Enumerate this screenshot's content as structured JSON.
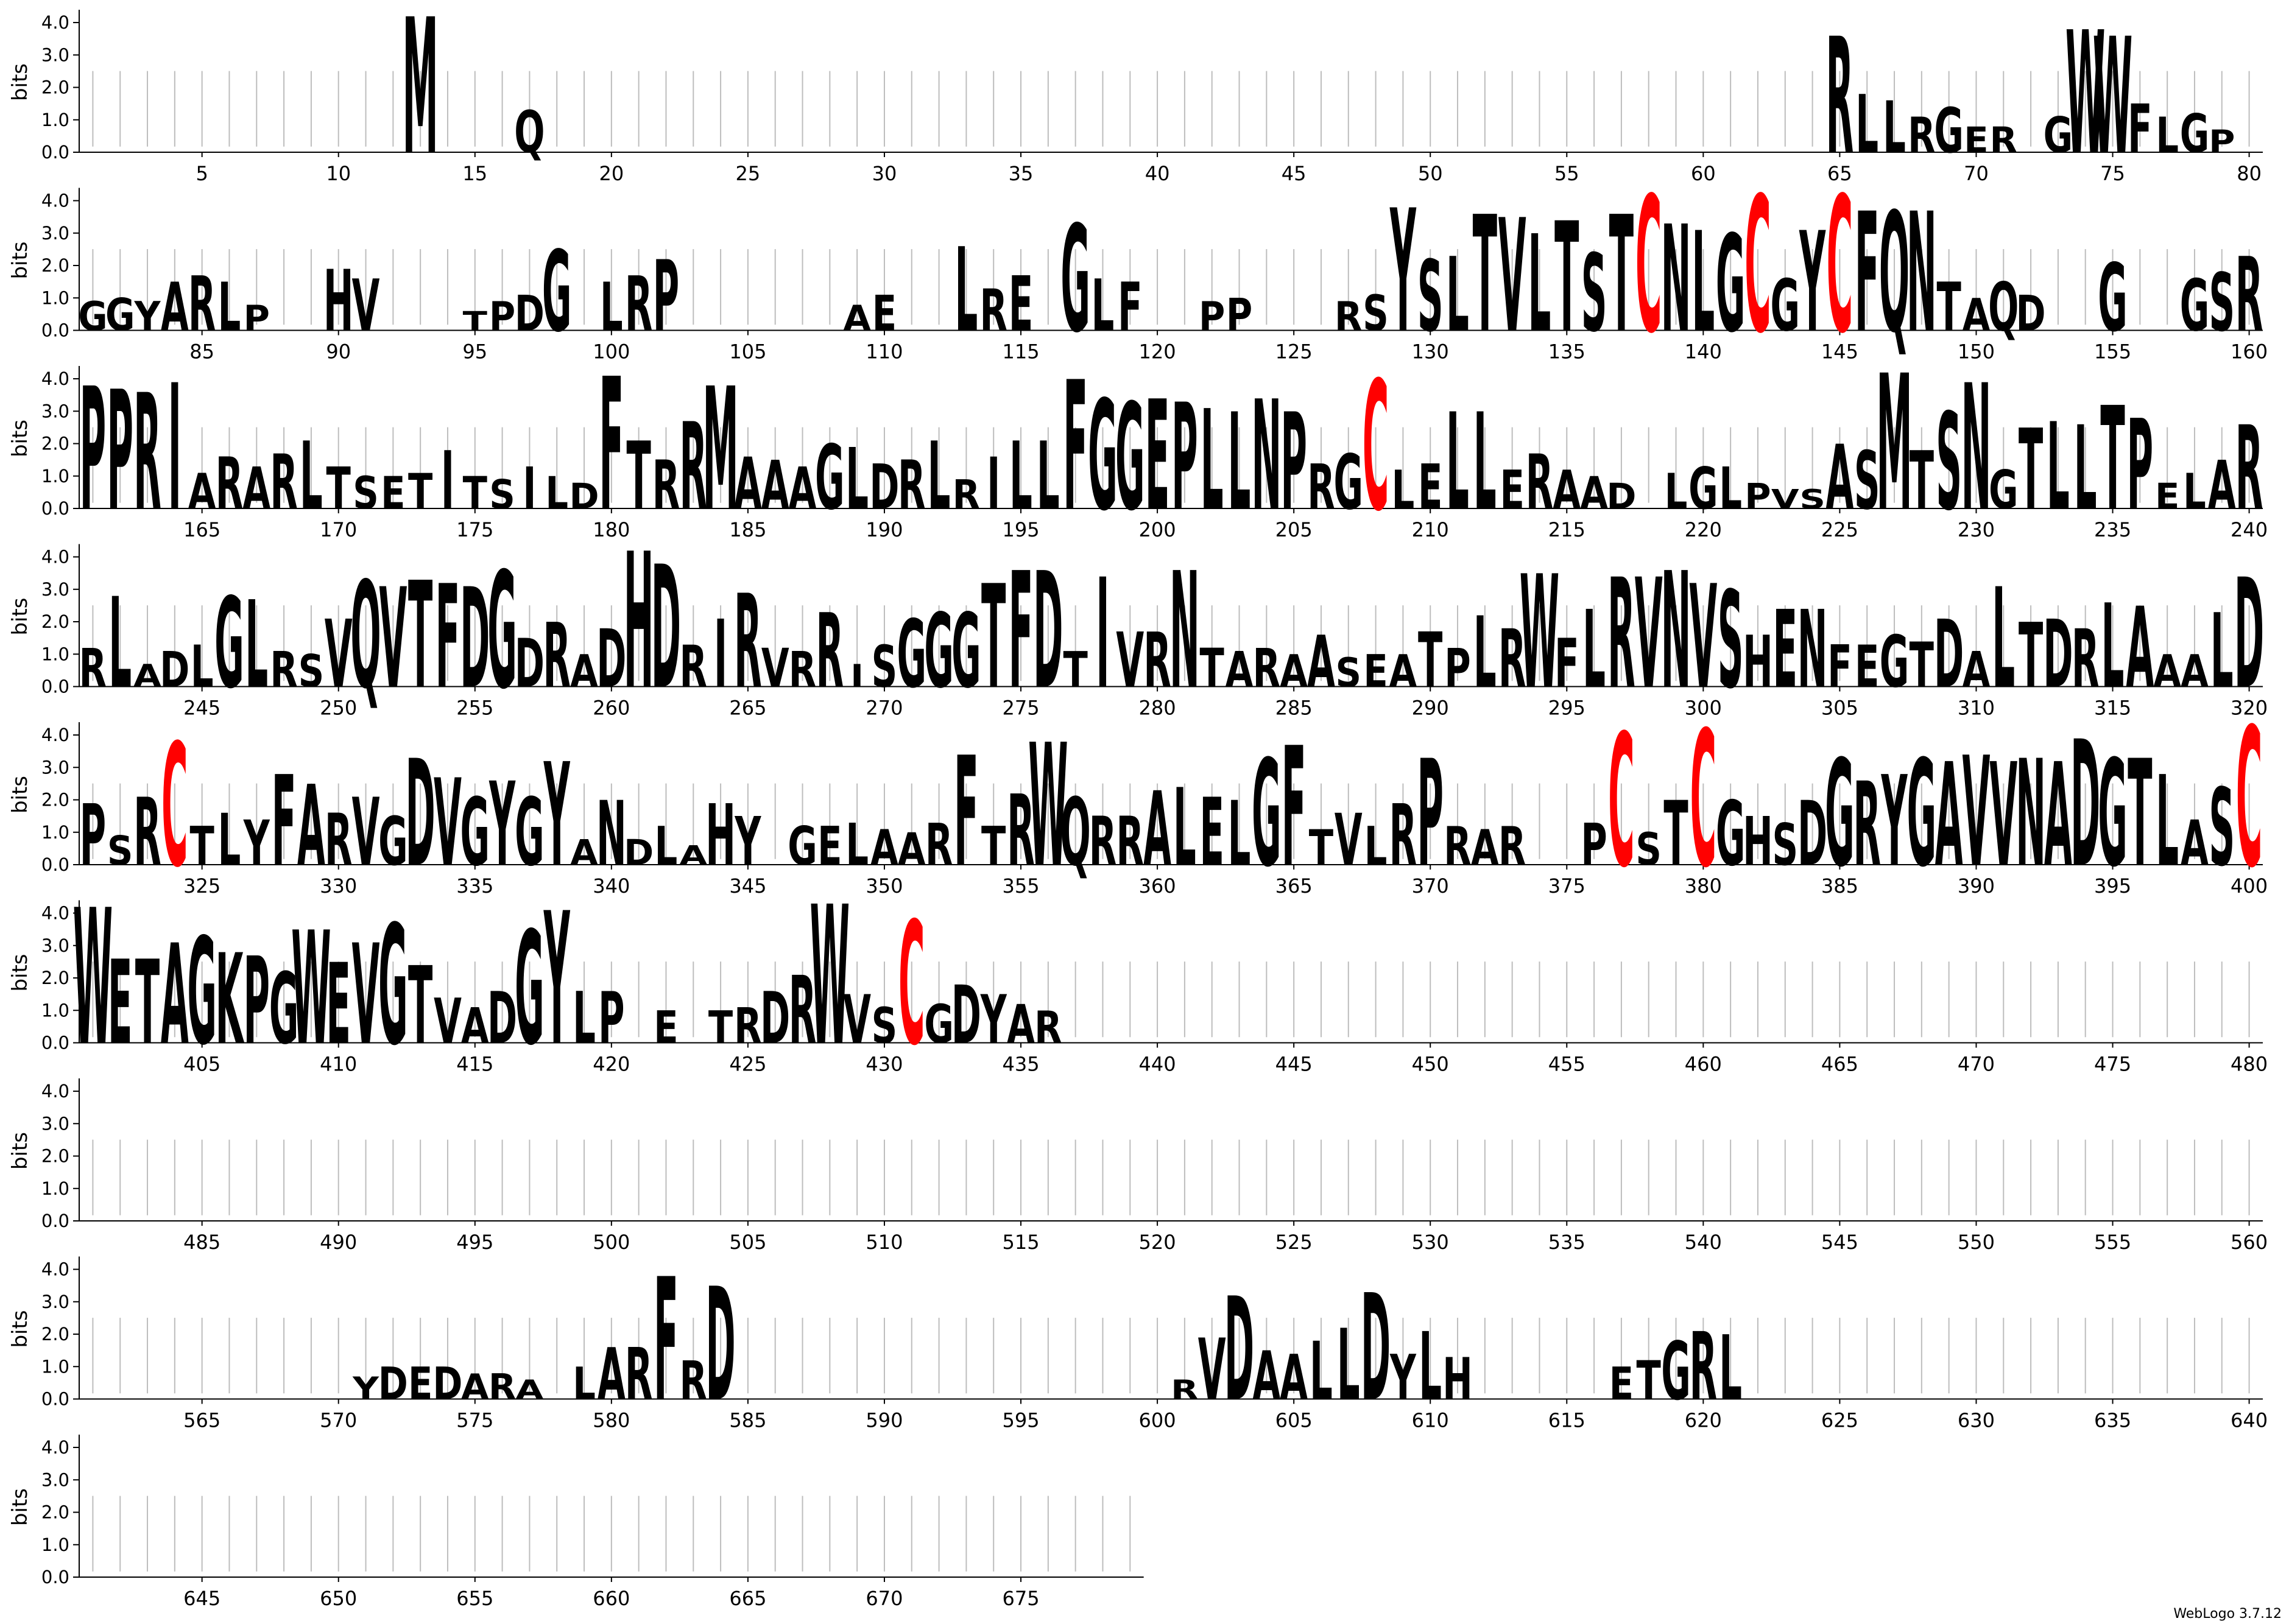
{
  "chart_data": {
    "type": "sequence-logo",
    "ylabel": "bits",
    "ylim": [
      0,
      4.32
    ],
    "yticks": [
      "0.0",
      "1.0",
      "2.0",
      "3.0",
      "4.0"
    ],
    "length": 679,
    "positions_per_row": 80,
    "xtick_step": 5,
    "highlight_color": "#ff0000",
    "default_color": "#000000",
    "residues": {
      "13": "M",
      "17": "Q",
      "65": "R",
      "66": "L",
      "67": "L",
      "68": "R",
      "69": "G",
      "70": "E",
      "71": "R",
      "73": "G",
      "74": "W",
      "75": "W",
      "76": "F",
      "77": "L",
      "78": "G",
      "79": "P",
      "81": "G",
      "82": "G",
      "83": "Y",
      "84": "A",
      "85": "R",
      "86": "L",
      "87": "P",
      "90": "H",
      "91": "V",
      "95": "T",
      "96": "P",
      "97": "D",
      "98": "G",
      "100": "L",
      "101": "R",
      "102": "P",
      "109": "A",
      "110": "E",
      "113": "L",
      "114": "R",
      "115": "E",
      "117": "G",
      "118": "L",
      "119": "F",
      "122": "P",
      "123": "P",
      "127": "R",
      "128": "S",
      "129": "Y",
      "130": "S",
      "131": "L",
      "132": "T",
      "133": "V",
      "134": "L",
      "135": "T",
      "136": "S",
      "137": "T",
      "138": "C",
      "139": "N",
      "140": "L",
      "141": "G",
      "142": "C",
      "143": "G",
      "144": "Y",
      "145": "C",
      "146": "F",
      "147": "Q",
      "148": "N",
      "149": "T",
      "150": "A",
      "151": "Q",
      "152": "D",
      "155": "G",
      "158": "G",
      "159": "S",
      "160": "R",
      "161": "P",
      "162": "P",
      "163": "R",
      "164": "I",
      "165": "A",
      "166": "R",
      "167": "A",
      "168": "R",
      "169": "L",
      "170": "T",
      "171": "S",
      "172": "E",
      "173": "T",
      "174": "I",
      "175": "T",
      "176": "S",
      "177": "I",
      "178": "L",
      "179": "D",
      "180": "F",
      "181": "T",
      "182": "R",
      "183": "R",
      "184": "M",
      "185": "A",
      "186": "A",
      "187": "A",
      "188": "G",
      "189": "L",
      "190": "D",
      "191": "R",
      "192": "L",
      "193": "R",
      "194": "I",
      "195": "L",
      "196": "L",
      "197": "F",
      "198": "G",
      "199": "G",
      "200": "E",
      "201": "P",
      "202": "L",
      "203": "L",
      "204": "N",
      "205": "P",
      "206": "R",
      "207": "G",
      "208": "C",
      "209": "L",
      "210": "E",
      "211": "L",
      "212": "L",
      "213": "E",
      "214": "R",
      "215": "A",
      "216": "A",
      "217": "D",
      "219": "L",
      "220": "G",
      "221": "L",
      "222": "P",
      "223": "V",
      "224": "S",
      "225": "A",
      "226": "S",
      "227": "M",
      "228": "T",
      "229": "S",
      "230": "N",
      "231": "G",
      "232": "T",
      "233": "L",
      "234": "L",
      "235": "T",
      "236": "P",
      "237": "E",
      "238": "L",
      "239": "A",
      "240": "R",
      "241": "R",
      "242": "L",
      "243": "A",
      "244": "D",
      "245": "L",
      "246": "G",
      "247": "L",
      "248": "R",
      "249": "S",
      "250": "V",
      "251": "Q",
      "252": "V",
      "253": "T",
      "254": "F",
      "255": "D",
      "256": "G",
      "257": "D",
      "258": "R",
      "259": "A",
      "260": "D",
      "261": "H",
      "262": "D",
      "263": "R",
      "264": "I",
      "265": "R",
      "266": "V",
      "267": "R",
      "268": "R",
      "269": "I",
      "270": "S",
      "271": "G",
      "272": "G",
      "273": "G",
      "274": "T",
      "275": "F",
      "276": "D",
      "277": "T",
      "278": "I",
      "279": "V",
      "280": "R",
      "281": "N",
      "282": "T",
      "283": "A",
      "284": "R",
      "285": "A",
      "286": "A",
      "287": "S",
      "288": "E",
      "289": "A",
      "290": "T",
      "291": "P",
      "292": "L",
      "293": "R",
      "294": "W",
      "295": "F",
      "296": "L",
      "297": "R",
      "298": "V",
      "299": "N",
      "300": "V",
      "301": "S",
      "302": "H",
      "303": "E",
      "304": "N",
      "305": "F",
      "306": "E",
      "307": "G",
      "308": "T",
      "309": "D",
      "310": "A",
      "311": "L",
      "312": "T",
      "313": "D",
      "314": "R",
      "315": "L",
      "316": "A",
      "317": "A",
      "318": "A",
      "319": "L",
      "320": "D",
      "321": "P",
      "322": "S",
      "323": "R",
      "324": "C",
      "325": "T",
      "326": "L",
      "327": "Y",
      "328": "F",
      "329": "A",
      "330": "R",
      "331": "V",
      "332": "G",
      "333": "D",
      "334": "V",
      "335": "G",
      "336": "Y",
      "337": "G",
      "338": "Y",
      "339": "A",
      "340": "N",
      "341": "D",
      "342": "L",
      "343": "A",
      "344": "H",
      "345": "Y",
      "347": "G",
      "348": "E",
      "349": "L",
      "350": "A",
      "351": "A",
      "352": "R",
      "353": "F",
      "354": "T",
      "355": "R",
      "356": "W",
      "357": "Q",
      "358": "R",
      "359": "R",
      "360": "A",
      "361": "L",
      "362": "E",
      "363": "L",
      "364": "G",
      "365": "F",
      "366": "T",
      "367": "V",
      "368": "L",
      "369": "R",
      "370": "P",
      "371": "R",
      "372": "A",
      "373": "R",
      "376": "P",
      "377": "C",
      "378": "S",
      "379": "T",
      "380": "C",
      "381": "G",
      "382": "H",
      "383": "S",
      "384": "D",
      "385": "G",
      "386": "R",
      "387": "Y",
      "388": "G",
      "389": "A",
      "390": "V",
      "391": "V",
      "392": "N",
      "393": "A",
      "394": "D",
      "395": "G",
      "396": "T",
      "397": "L",
      "398": "A",
      "399": "S",
      "400": "C",
      "401": "W",
      "402": "E",
      "403": "T",
      "404": "A",
      "405": "G",
      "406": "K",
      "407": "P",
      "408": "G",
      "409": "W",
      "410": "E",
      "411": "V",
      "412": "G",
      "413": "T",
      "414": "V",
      "415": "A",
      "416": "D",
      "417": "G",
      "418": "Y",
      "419": "L",
      "420": "P",
      "422": "E",
      "424": "T",
      "425": "R",
      "426": "D",
      "427": "R",
      "428": "W",
      "429": "V",
      "430": "S",
      "431": "C",
      "432": "G",
      "433": "D",
      "434": "Y",
      "435": "A",
      "436": "R",
      "571": "Y",
      "572": "D",
      "573": "E",
      "574": "D",
      "575": "A",
      "576": "R",
      "577": "A",
      "579": "L",
      "580": "A",
      "581": "R",
      "582": "F",
      "583": "R",
      "584": "D",
      "601": "R",
      "602": "V",
      "603": "D",
      "604": "A",
      "605": "A",
      "606": "L",
      "607": "L",
      "608": "D",
      "609": "Y",
      "610": "L",
      "611": "H",
      "617": "E",
      "618": "T",
      "619": "G",
      "620": "R",
      "621": "L"
    },
    "heights": {
      "13": 4.2,
      "17": 1.3,
      "65": 3.6,
      "66": 1.8,
      "67": 1.6,
      "68": 1.1,
      "69": 1.4,
      "70": 0.8,
      "71": 0.8,
      "73": 1.1,
      "74": 3.8,
      "75": 3.6,
      "76": 1.5,
      "77": 1.1,
      "78": 1.2,
      "79": 0.7,
      "81": 0.9,
      "82": 1.0,
      "83": 0.9,
      "84": 1.5,
      "85": 1.7,
      "86": 1.5,
      "87": 0.8,
      "90": 1.9,
      "91": 1.6,
      "95": 0.6,
      "96": 0.9,
      "97": 1.1,
      "98": 2.5,
      "100": 1.5,
      "101": 1.7,
      "102": 2.2,
      "109": 0.8,
      "110": 1.1,
      "113": 2.6,
      "114": 1.3,
      "115": 1.7,
      "117": 3.3,
      "118": 1.6,
      "119": 1.5,
      "122": 0.9,
      "123": 1.0,
      "127": 0.9,
      "128": 1.1,
      "129": 3.8,
      "130": 2.2,
      "131": 2.3,
      "132": 3.6,
      "133": 3.5,
      "134": 3.0,
      "135": 3.4,
      "136": 2.4,
      "137": 3.6,
      "138": 4.2,
      "139": 3.3,
      "140": 3.1,
      "141": 3.0,
      "142": 4.2,
      "143": 1.6,
      "144": 3.1,
      "145": 4.2,
      "146": 3.7,
      "147": 3.7,
      "148": 3.7,
      "149": 1.5,
      "150": 1.0,
      "151": 1.5,
      "152": 1.1,
      "155": 2.1,
      "158": 1.6,
      "159": 1.8,
      "160": 2.3,
      "161": 3.8,
      "162": 3.7,
      "163": 3.6,
      "164": 3.9,
      "165": 1.1,
      "166": 1.6,
      "167": 1.3,
      "168": 1.7,
      "169": 2.1,
      "170": 1.3,
      "171": 1.0,
      "172": 1.0,
      "173": 1.1,
      "174": 1.8,
      "175": 1.0,
      "176": 0.9,
      "177": 1.3,
      "178": 1.0,
      "179": 0.8,
      "180": 4.1,
      "181": 2.1,
      "182": 1.5,
      "183": 2.7,
      "184": 3.8,
      "185": 1.6,
      "186": 1.5,
      "187": 1.3,
      "188": 2.0,
      "189": 1.9,
      "190": 1.4,
      "191": 1.5,
      "192": 2.1,
      "193": 0.9,
      "194": 1.6,
      "195": 2.1,
      "196": 2.1,
      "197": 4.0,
      "198": 3.4,
      "199": 3.3,
      "200": 3.4,
      "201": 3.3,
      "202": 3.1,
      "203": 3.0,
      "204": 3.4,
      "205": 3.0,
      "206": 1.4,
      "207": 1.7,
      "208": 4.0,
      "209": 1.2,
      "210": 1.4,
      "211": 3.0,
      "212": 3.0,
      "213": 1.2,
      "214": 1.7,
      "215": 1.2,
      "216": 1.0,
      "217": 0.8,
      "219": 1.1,
      "220": 1.3,
      "221": 1.3,
      "222": 0.8,
      "223": 0.6,
      "224": 0.6,
      "225": 2.0,
      "226": 1.8,
      "227": 4.2,
      "228": 1.8,
      "229": 3.0,
      "230": 3.9,
      "231": 1.2,
      "232": 2.5,
      "233": 2.7,
      "234": 2.6,
      "235": 3.2,
      "236": 2.8,
      "237": 0.8,
      "238": 1.1,
      "239": 1.5,
      "240": 2.6,
      "241": 1.2,
      "242": 2.8,
      "243": 0.7,
      "244": 1.1,
      "245": 1.3,
      "246": 2.8,
      "247": 2.7,
      "248": 1.1,
      "249": 1.0,
      "250": 2.1,
      "251": 3.3,
      "252": 3.1,
      "253": 3.3,
      "254": 3.2,
      "255": 3.1,
      "256": 3.6,
      "257": 1.5,
      "258": 2.0,
      "259": 1.0,
      "260": 1.8,
      "261": 4.2,
      "262": 3.8,
      "263": 1.3,
      "264": 2.1,
      "265": 2.9,
      "266": 1.2,
      "267": 1.1,
      "268": 2.3,
      "269": 0.7,
      "270": 1.3,
      "271": 2.1,
      "272": 2.3,
      "273": 2.3,
      "274": 3.2,
      "275": 3.6,
      "276": 3.6,
      "277": 1.1,
      "278": 3.4,
      "279": 1.7,
      "280": 1.7,
      "281": 3.6,
      "282": 1.2,
      "283": 1.1,
      "284": 1.2,
      "285": 1.0,
      "286": 1.6,
      "287": 0.9,
      "288": 1.0,
      "289": 1.0,
      "290": 1.7,
      "291": 1.2,
      "292": 2.2,
      "293": 1.8,
      "294": 3.5,
      "295": 1.5,
      "296": 2.4,
      "297": 3.4,
      "298": 3.4,
      "299": 3.6,
      "300": 3.2,
      "301": 3.0,
      "302": 1.6,
      "303": 2.4,
      "304": 2.4,
      "305": 1.3,
      "306": 1.3,
      "307": 1.6,
      "308": 1.4,
      "309": 2.1,
      "310": 1.1,
      "311": 3.1,
      "312": 2.0,
      "313": 2.1,
      "314": 1.8,
      "315": 2.6,
      "316": 2.5,
      "317": 1.0,
      "318": 1.0,
      "319": 2.3,
      "320": 3.4,
      "321": 1.9,
      "322": 0.9,
      "323": 2.1,
      "324": 3.8,
      "325": 1.2,
      "326": 1.6,
      "327": 1.4,
      "328": 2.8,
      "329": 2.5,
      "330": 1.6,
      "331": 2.1,
      "332": 1.5,
      "333": 3.3,
      "334": 2.7,
      "335": 2.1,
      "336": 2.6,
      "337": 2.1,
      "338": 3.2,
      "339": 0.8,
      "340": 2.0,
      "341": 0.8,
      "342": 1.2,
      "343": 0.6,
      "344": 1.9,
      "345": 1.5,
      "347": 1.2,
      "348": 1.2,
      "349": 1.3,
      "350": 1.1,
      "351": 1.0,
      "352": 1.3,
      "353": 3.4,
      "354": 1.2,
      "355": 2.2,
      "356": 3.8,
      "357": 2.1,
      "358": 1.5,
      "359": 1.5,
      "360": 2.3,
      "361": 2.4,
      "362": 2.1,
      "363": 2.0,
      "364": 3.3,
      "365": 3.7,
      "366": 1.1,
      "367": 1.6,
      "368": 1.2,
      "369": 1.9,
      "370": 3.3,
      "371": 1.2,
      "372": 1.1,
      "373": 1.2,
      "376": 1.3,
      "377": 4.1,
      "378": 1.0,
      "379": 2.0,
      "380": 4.2,
      "381": 2.0,
      "382": 1.5,
      "383": 1.3,
      "384": 2.0,
      "385": 3.3,
      "386": 2.6,
      "387": 2.8,
      "388": 3.3,
      "389": 3.2,
      "390": 3.4,
      "391": 3.2,
      "392": 3.3,
      "393": 3.2,
      "394": 3.9,
      "395": 3.3,
      "396": 3.3,
      "397": 2.8,
      "398": 1.4,
      "399": 2.4,
      "400": 4.3,
      "401": 4.2,
      "402": 2.6,
      "403": 2.6,
      "404": 3.1,
      "405": 3.3,
      "406": 2.8,
      "407": 2.7,
      "408": 2.2,
      "409": 3.5,
      "410": 2.5,
      "411": 3.1,
      "412": 3.7,
      "413": 2.4,
      "414": 1.4,
      "415": 1.1,
      "416": 1.6,
      "417": 3.5,
      "418": 4.1,
      "419": 1.6,
      "420": 1.6,
      "422": 1.0,
      "424": 1.0,
      "425": 1.1,
      "426": 1.6,
      "427": 2.1,
      "428": 4.3,
      "429": 1.5,
      "430": 1.1,
      "431": 3.8,
      "432": 1.2,
      "433": 1.8,
      "434": 1.5,
      "435": 1.2,
      "436": 1.0,
      "571": 0.7,
      "572": 1.0,
      "573": 1.0,
      "574": 1.0,
      "575": 0.8,
      "576": 0.8,
      "577": 0.6,
      "579": 1.0,
      "580": 1.6,
      "581": 1.6,
      "582": 3.8,
      "583": 1.2,
      "584": 3.5,
      "601": 0.6,
      "602": 1.9,
      "603": 3.2,
      "604": 1.5,
      "605": 1.4,
      "606": 1.8,
      "607": 2.2,
      "608": 3.3,
      "609": 1.4,
      "610": 2.1,
      "611": 1.3,
      "617": 1.0,
      "618": 1.2,
      "619": 1.8,
      "620": 2.1,
      "621": 2.0
    }
  },
  "credit": "WebLogo 3.7.12"
}
